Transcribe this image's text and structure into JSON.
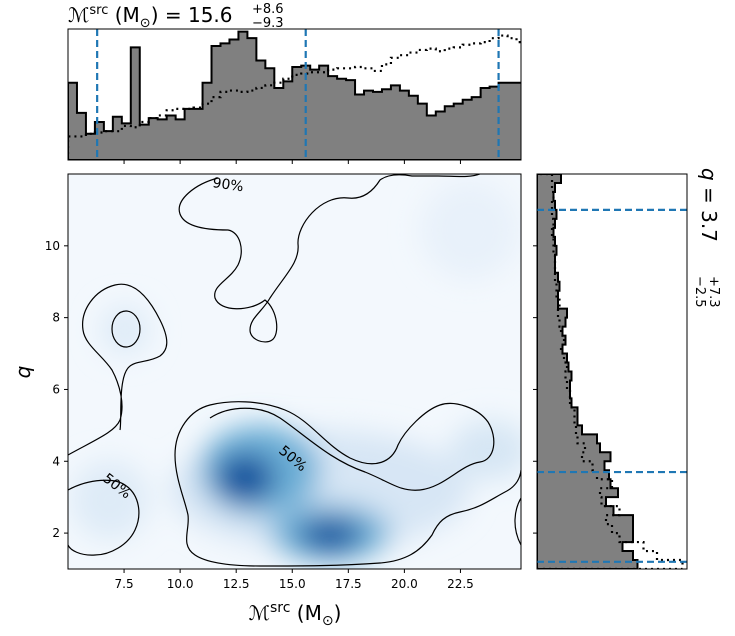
{
  "chart_data": [
    {
      "type": "heatmap",
      "panel": "joint",
      "xlabel_main": "ℳ",
      "xlabel_sup": "src",
      "xlabel_unit": "(M",
      "xlabel_sub": "⊙",
      "xlabel_close": ")",
      "ylabel": "q",
      "xlim": [
        5.0,
        25.2
      ],
      "ylim": [
        1.0,
        12.0
      ],
      "x_ticks": [
        7.5,
        10.0,
        12.5,
        15.0,
        17.5,
        20.0,
        22.5
      ],
      "x_tick_labels": [
        "7.5",
        "10.0",
        "12.5",
        "15.0",
        "17.5",
        "20.0",
        "22.5"
      ],
      "y_ticks": [
        2,
        4,
        6,
        8,
        10
      ],
      "y_tick_labels": [
        "2",
        "4",
        "6",
        "8",
        "10"
      ],
      "colormap": "Blues",
      "density_peaks": [
        {
          "x": 12.7,
          "y": 3.5,
          "weight": 1.0
        },
        {
          "x": 16.6,
          "y": 1.9,
          "weight": 0.95
        }
      ],
      "contours": [
        {
          "level": "90%",
          "label": "90%"
        },
        {
          "level": "50%",
          "label": "50%"
        }
      ]
    },
    {
      "type": "bar",
      "panel": "top-marginal",
      "title_main": "ℳ",
      "title_sup": "src",
      "title_unit": "(M",
      "title_sub": "⊙",
      "title_close": ") = 15.6",
      "title_err_plus": "+8.6",
      "title_err_minus": "−9.3",
      "x": [
        5.0,
        5.4,
        5.8,
        6.2,
        6.6,
        7.0,
        7.4,
        7.8,
        8.2,
        8.6,
        9.0,
        9.4,
        9.8,
        10.2,
        10.6,
        11.0,
        11.4,
        11.8,
        12.2,
        12.6,
        13.0,
        13.4,
        13.8,
        14.2,
        14.6,
        15.0,
        15.4,
        15.8,
        16.2,
        16.6,
        17.0,
        17.4,
        17.8,
        18.2,
        18.6,
        19.0,
        19.4,
        19.8,
        20.2,
        20.6,
        21.0,
        21.4,
        21.8,
        22.2,
        22.6,
        23.0,
        23.4,
        23.8,
        24.2,
        24.6,
        25.0
      ],
      "series": [
        {
          "values": [
            0.59,
            0.36,
            0.2,
            0.29,
            0.22,
            0.33,
            0.28,
            0.86,
            0.27,
            0.32,
            0.31,
            0.34,
            0.31,
            0.39,
            0.39,
            0.59,
            0.87,
            0.89,
            0.92,
            0.98,
            0.93,
            0.76,
            0.7,
            0.55,
            0.6,
            0.71,
            0.72,
            0.69,
            0.72,
            0.64,
            0.62,
            0.61,
            0.5,
            0.53,
            0.52,
            0.54,
            0.57,
            0.53,
            0.49,
            0.43,
            0.34,
            0.37,
            0.41,
            0.43,
            0.46,
            0.48,
            0.55,
            0.56,
            0.59,
            0.59,
            0.59
          ]
        },
        {
          "values": [
            0.18,
            0.18,
            0.2,
            0.21,
            0.22,
            0.22,
            0.26,
            0.25,
            0.29,
            0.32,
            0.34,
            0.38,
            0.39,
            0.39,
            0.4,
            0.43,
            0.48,
            0.52,
            0.53,
            0.52,
            0.53,
            0.55,
            0.57,
            0.59,
            0.62,
            0.65,
            0.66,
            0.67,
            0.67,
            0.69,
            0.7,
            0.7,
            0.71,
            0.7,
            0.68,
            0.73,
            0.78,
            0.8,
            0.82,
            0.84,
            0.85,
            0.83,
            0.85,
            0.86,
            0.88,
            0.89,
            0.9,
            0.93,
            0.95,
            0.93,
            0.9
          ]
        }
      ],
      "vlines": [
        6.3,
        15.6,
        24.2
      ]
    },
    {
      "type": "bar",
      "panel": "right-marginal",
      "title_main": "q",
      "title_value": " = 3.7",
      "title_err_plus": "+7.3",
      "title_err_minus": "−2.5",
      "y": [
        1.0,
        1.25,
        1.5,
        1.75,
        2.0,
        2.25,
        2.5,
        2.75,
        3.0,
        3.25,
        3.5,
        3.75,
        4.0,
        4.25,
        4.5,
        4.75,
        5.0,
        5.25,
        5.5,
        5.75,
        6.0,
        6.25,
        6.5,
        6.75,
        7.0,
        7.25,
        7.5,
        7.75,
        8.0,
        8.25,
        8.5,
        8.75,
        9.0,
        9.25,
        9.5,
        9.75,
        10.0,
        10.25,
        10.5,
        10.75,
        11.0,
        11.25,
        11.5,
        11.75
      ],
      "series": [
        {
          "values": [
            0.67,
            0.64,
            0.57,
            0.64,
            0.64,
            0.64,
            0.51,
            0.46,
            0.54,
            0.49,
            0.48,
            0.45,
            0.49,
            0.42,
            0.4,
            0.3,
            0.27,
            0.27,
            0.23,
            0.22,
            0.22,
            0.23,
            0.21,
            0.2,
            0.17,
            0.19,
            0.17,
            0.19,
            0.2,
            0.14,
            0.14,
            0.15,
            0.14,
            0.12,
            0.12,
            0.13,
            0.12,
            0.11,
            0.12,
            0.13,
            0.12,
            0.11,
            0.12,
            0.16
          ]
        },
        {
          "values": [
            0.97,
            0.8,
            0.71,
            0.55,
            0.5,
            0.46,
            0.55,
            0.43,
            0.42,
            0.5,
            0.4,
            0.37,
            0.3,
            0.32,
            0.27,
            0.26,
            0.25,
            0.25,
            0.22,
            0.22,
            0.2,
            0.19,
            0.2,
            0.18,
            0.16,
            0.18,
            0.16,
            0.15,
            0.14,
            0.15,
            0.13,
            0.13,
            0.12,
            0.12,
            0.12,
            0.11,
            0.11,
            0.1,
            0.11,
            0.1,
            0.1,
            0.11,
            0.1,
            0.1
          ]
        }
      ],
      "hlines": [
        1.2,
        3.7,
        11.0
      ]
    }
  ],
  "colors": {
    "hist_fill": "#808080",
    "hist_edge": "#000000",
    "quantile_line": "#1f77b4",
    "contour": "#000000",
    "axes": "#000000"
  }
}
